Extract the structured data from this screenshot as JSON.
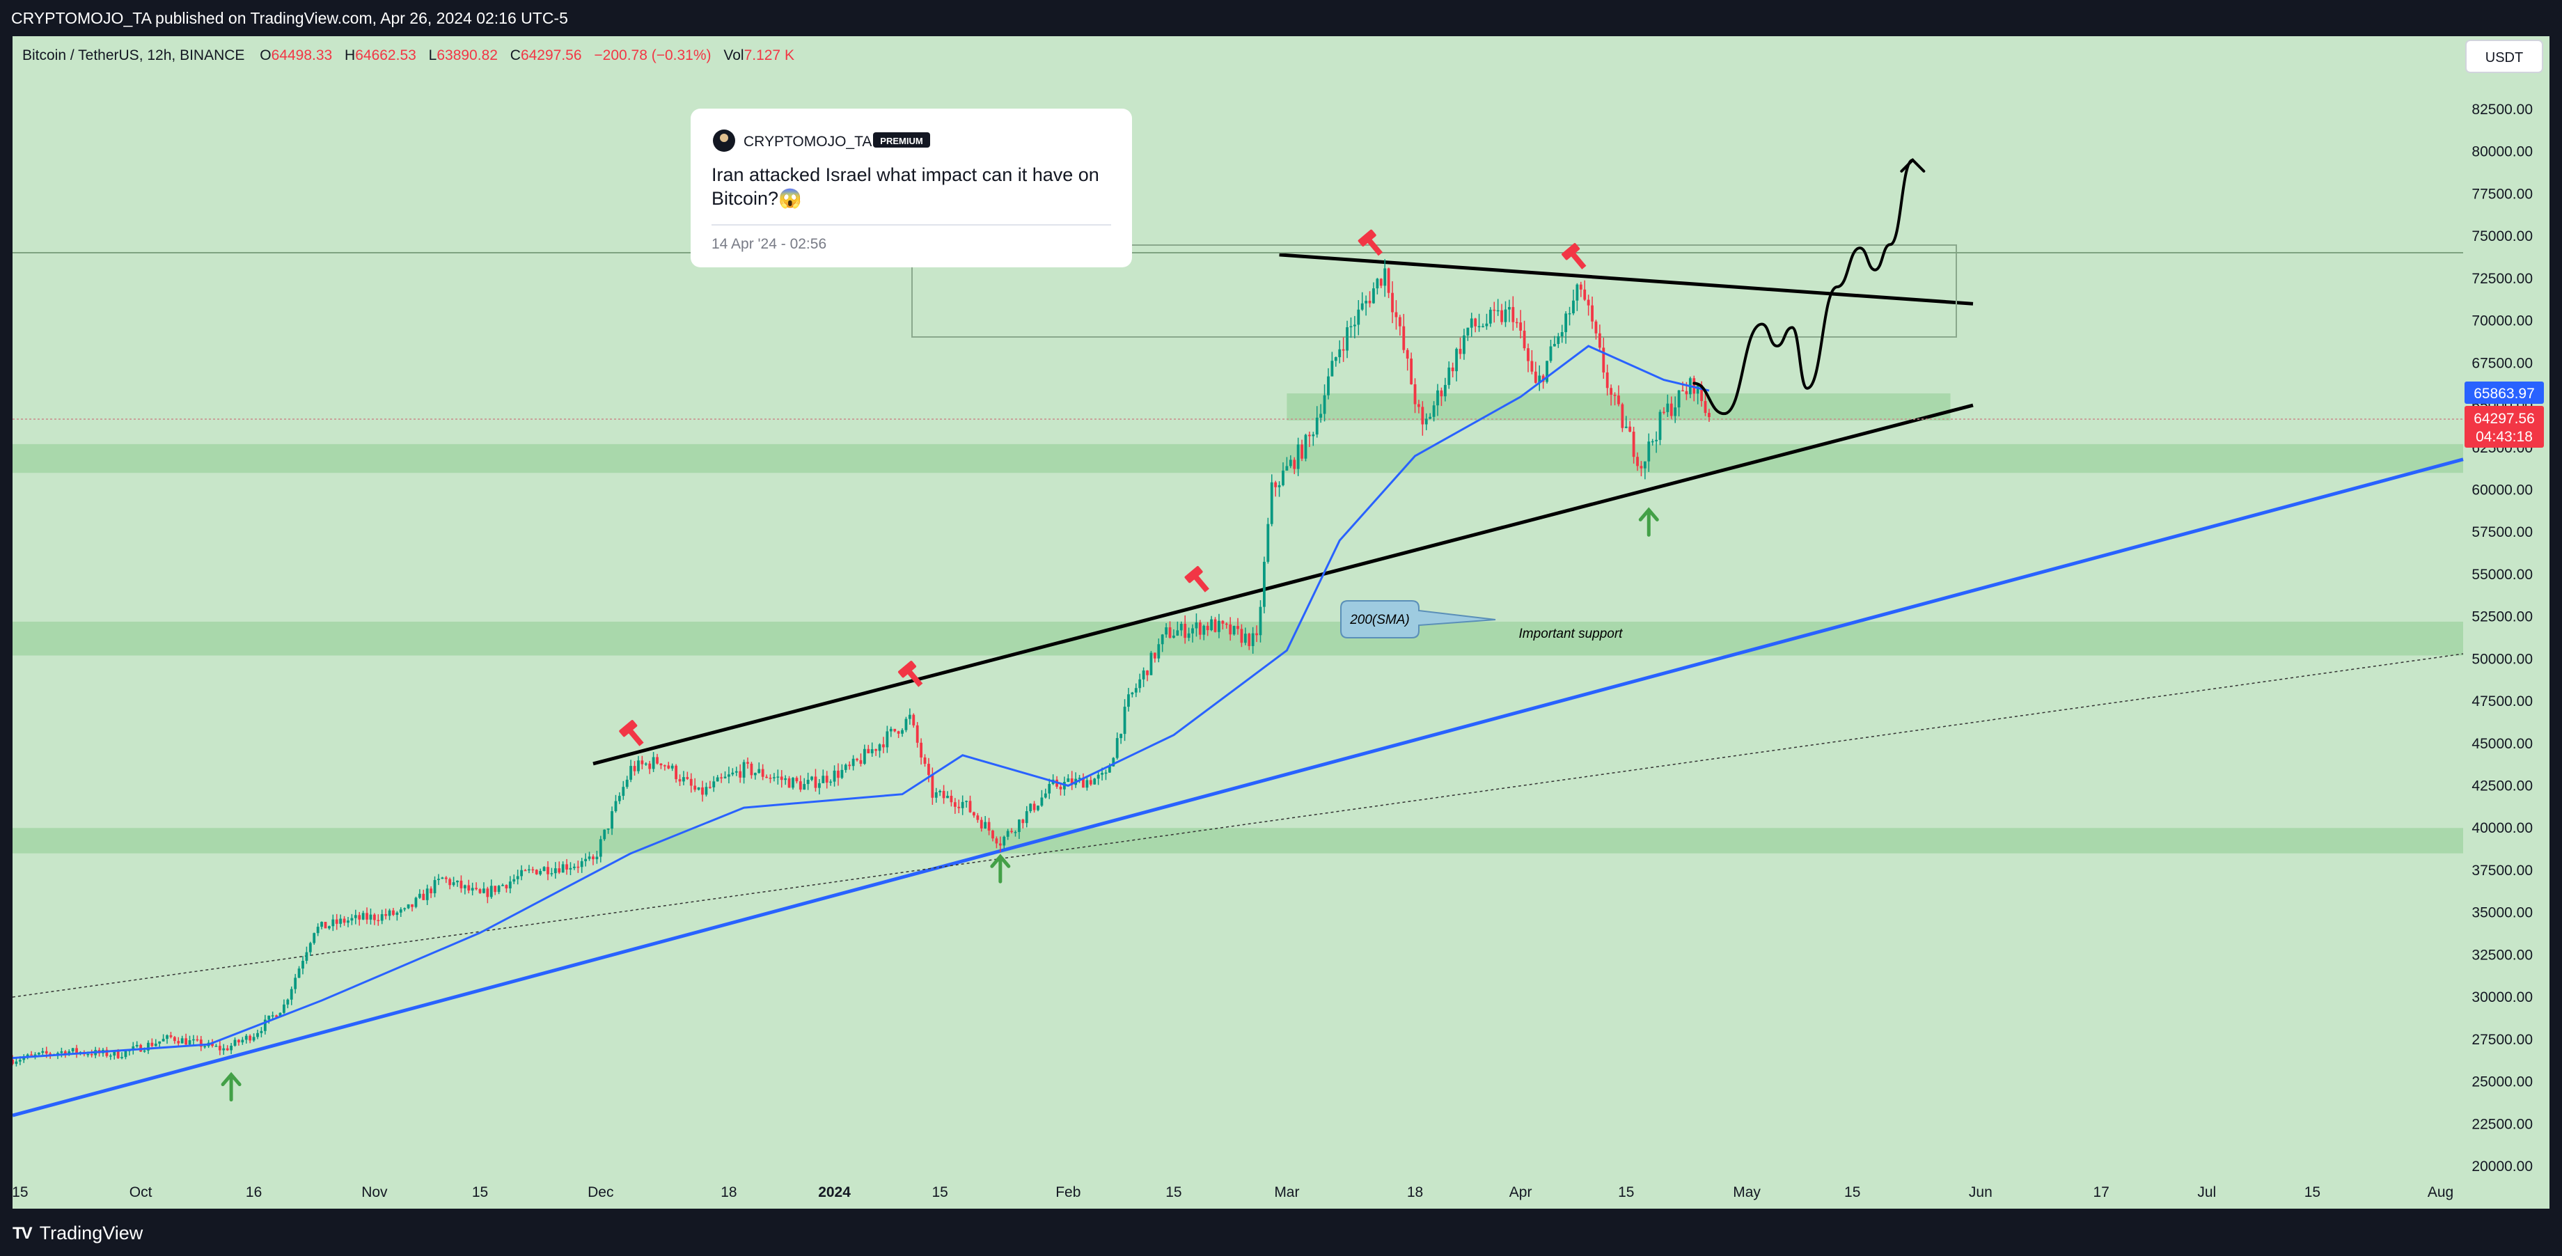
{
  "header": {
    "publish_line": "CRYPTOMOJO_TA published on TradingView.com, Apr 26, 2024 02:16 UTC-5"
  },
  "footer": {
    "brand": "TradingView"
  },
  "legend": {
    "symbol": "Bitcoin / TetherUS, 12h, BINANCE",
    "open_label": "O",
    "open": "64498.33",
    "high_label": "H",
    "high": "64662.53",
    "low_label": "L",
    "low": "63890.82",
    "close_label": "C",
    "close": "64297.56",
    "change": "−200.78 (−0.31%)",
    "vol_label": "Vol",
    "vol": "7.127 K"
  },
  "currency_button": "USDT",
  "idea_card": {
    "author": "CRYPTOMOJO_TA",
    "badge": "PREMIUM",
    "title_line1": "Iran attacked Israel what impact can it have on",
    "title_line2": "Bitcoin?😱",
    "date": "14 Apr '24 - 02:56"
  },
  "price_badges": {
    "blue": {
      "value": "65863.97",
      "color": "#2962ff"
    },
    "red": {
      "value": "64297.56",
      "countdown": "04:43:18",
      "color": "#f23645"
    }
  },
  "annotations": {
    "sma_label": "200(SMA)",
    "support_label": "Important support"
  },
  "colors": {
    "background": "#c8e6c9",
    "zone": "#a5d6a7",
    "up": "#089981",
    "down": "#f23645",
    "ma": "#2962ff",
    "frame": "#131722"
  },
  "chart_data": {
    "type": "candlestick",
    "y_axis": {
      "ticks": [
        "82500.00",
        "80000.00",
        "77500.00",
        "75000.00",
        "72500.00",
        "70000.00",
        "67500.00",
        "65000.00",
        "62500.00",
        "60000.00",
        "57500.00",
        "55000.00",
        "52500.00",
        "50000.00",
        "47500.00",
        "45000.00",
        "42500.00",
        "40000.00",
        "37500.00",
        "35000.00",
        "32500.00",
        "30000.00",
        "27500.00",
        "25000.00",
        "22500.00",
        "20000.00"
      ],
      "range": [
        19500,
        83500
      ]
    },
    "x_axis": {
      "ticks": [
        "15",
        "Oct",
        "16",
        "Nov",
        "15",
        "Dec",
        "18",
        "2024",
        "15",
        "Feb",
        "15",
        "Mar",
        "18",
        "Apr",
        "15",
        "May",
        "15",
        "Jun",
        "17",
        "Jul",
        "15",
        "Aug"
      ],
      "range": [
        "2023-09-14",
        "2024-08-04"
      ]
    },
    "last_price": 64297.56,
    "ma_value": 65863.97,
    "price_path": [
      [
        "2023-09-14",
        26300
      ],
      [
        "2023-09-21",
        26800
      ],
      [
        "2023-09-28",
        26600
      ],
      [
        "2023-10-05",
        27600
      ],
      [
        "2023-10-12",
        26900
      ],
      [
        "2023-10-16",
        27800
      ],
      [
        "2023-10-20",
        29500
      ],
      [
        "2023-10-24",
        34000
      ],
      [
        "2023-10-28",
        34500
      ],
      [
        "2023-11-05",
        35000
      ],
      [
        "2023-11-10",
        37000
      ],
      [
        "2023-11-15",
        36000
      ],
      [
        "2023-11-22",
        37500
      ],
      [
        "2023-11-30",
        38000
      ],
      [
        "2023-12-05",
        43500
      ],
      [
        "2023-12-09",
        44000
      ],
      [
        "2023-12-14",
        42000
      ],
      [
        "2023-12-20",
        43500
      ],
      [
        "2023-12-28",
        42500
      ],
      [
        "2024-01-03",
        43500
      ],
      [
        "2024-01-11",
        46500
      ],
      [
        "2024-01-14",
        42000
      ],
      [
        "2024-01-18",
        41500
      ],
      [
        "2024-01-23",
        39200
      ],
      [
        "2024-01-30",
        42500
      ],
      [
        "2024-02-06",
        43000
      ],
      [
        "2024-02-09",
        47500
      ],
      [
        "2024-02-14",
        51500
      ],
      [
        "2024-02-20",
        52000
      ],
      [
        "2024-02-26",
        51000
      ],
      [
        "2024-02-28",
        60000
      ],
      [
        "2024-03-04",
        63000
      ],
      [
        "2024-03-08",
        68500
      ],
      [
        "2024-03-14",
        73000
      ],
      [
        "2024-03-19",
        63500
      ],
      [
        "2024-03-25",
        69500
      ],
      [
        "2024-03-31",
        70500
      ],
      [
        "2024-04-03",
        66000
      ],
      [
        "2024-04-09",
        72000
      ],
      [
        "2024-04-13",
        65500
      ],
      [
        "2024-04-17",
        61500
      ],
      [
        "2024-04-20",
        64500
      ],
      [
        "2024-04-24",
        66300
      ],
      [
        "2024-04-26",
        64297.56
      ]
    ],
    "ma_path": [
      [
        "2023-09-14",
        26400
      ],
      [
        "2023-10-10",
        27200
      ],
      [
        "2023-10-25",
        29800
      ],
      [
        "2023-11-15",
        33800
      ],
      [
        "2023-12-05",
        38500
      ],
      [
        "2023-12-20",
        41200
      ],
      [
        "2024-01-10",
        42000
      ],
      [
        "2024-01-18",
        44300
      ],
      [
        "2024-02-01",
        42500
      ],
      [
        "2024-02-15",
        45500
      ],
      [
        "2024-03-01",
        50500
      ],
      [
        "2024-03-08",
        57000
      ],
      [
        "2024-03-18",
        62000
      ],
      [
        "2024-04-01",
        65500
      ],
      [
        "2024-04-10",
        68500
      ],
      [
        "2024-04-20",
        66500
      ],
      [
        "2024-04-26",
        65863.97
      ]
    ],
    "zones": [
      {
        "from": 38500,
        "to": 40000
      },
      {
        "from": 50200,
        "to": 52200
      },
      {
        "from": 61000,
        "to": 62700
      },
      {
        "from": 64100,
        "to": 65700,
        "start": "2024-03-01",
        "end": "2024-05-28"
      }
    ],
    "trendlines": [
      {
        "name": "Ascending resistance",
        "from": [
          "2023-11-30",
          43800
        ],
        "to": [
          "2024-05-31",
          65000
        ],
        "color": "#000000"
      },
      {
        "name": "Descending resistance",
        "from": [
          "2024-02-29",
          73900
        ],
        "to": [
          "2024-05-31",
          71000
        ],
        "color": "#000000"
      },
      {
        "name": "Long-term support",
        "from": [
          "2023-09-14",
          23000
        ],
        "to": [
          "2024-08-04",
          61800
        ],
        "color": "#2962ff"
      },
      {
        "name": "Dotted trend",
        "from": [
          "2023-09-14",
          30000
        ],
        "to": [
          "2024-08-04",
          50300
        ],
        "color": "#333333",
        "style": "dotted"
      }
    ],
    "projection": [
      [
        "2024-04-24",
        66300
      ],
      [
        "2024-04-28",
        64500
      ],
      [
        "2024-05-03",
        69800
      ],
      [
        "2024-05-05",
        68500
      ],
      [
        "2024-05-07",
        69600
      ],
      [
        "2024-05-09",
        66000
      ],
      [
        "2024-05-13",
        72000
      ],
      [
        "2024-05-16",
        74300
      ],
      [
        "2024-05-18",
        73000
      ],
      [
        "2024-05-20",
        74500
      ],
      [
        "2024-05-23",
        79500
      ]
    ],
    "markers": [
      {
        "type": "top",
        "date": "2023-12-05",
        "value": 45700
      },
      {
        "type": "top",
        "date": "2024-01-11",
        "value": 49200
      },
      {
        "type": "top",
        "date": "2024-02-18",
        "value": 54800
      },
      {
        "type": "top",
        "date": "2024-03-12",
        "value": 74700
      },
      {
        "type": "top",
        "date": "2024-04-08",
        "value": 73900
      },
      {
        "type": "bottom",
        "date": "2023-10-13",
        "value": 25000
      },
      {
        "type": "bottom",
        "date": "2024-01-23",
        "value": 37900
      },
      {
        "type": "bottom",
        "date": "2024-04-18",
        "value": 58400
      }
    ]
  }
}
